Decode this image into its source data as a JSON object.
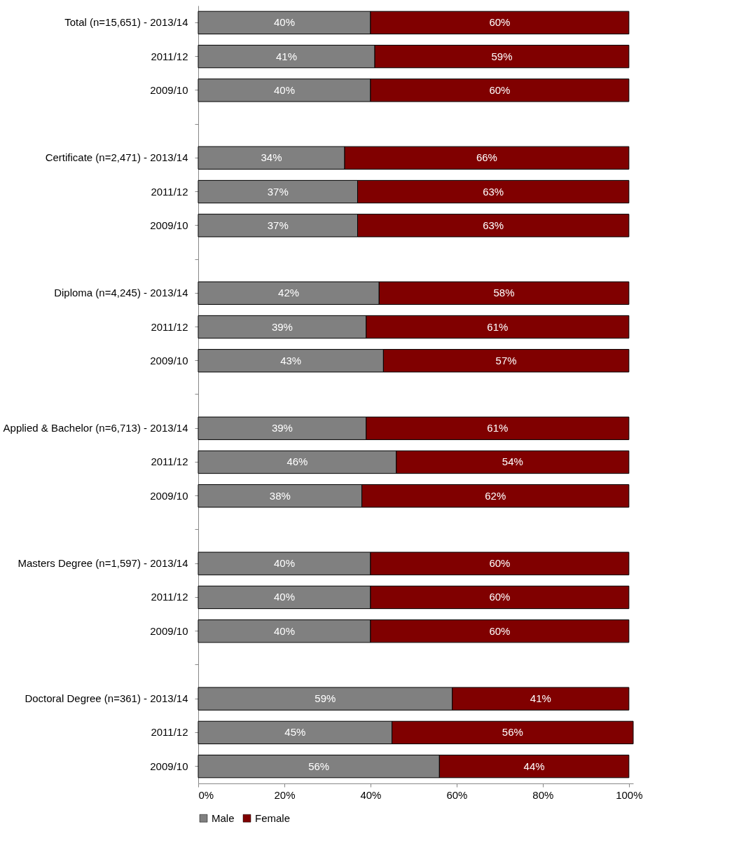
{
  "chart_data": {
    "type": "bar",
    "orientation": "horizontal",
    "stacked": true,
    "legend": "bottom",
    "grid": false,
    "categories": [
      "Total (n=15,651) - 2013/14",
      "2011/12",
      "2009/10",
      null,
      "Certificate (n=2,471) - 2013/14",
      "2011/12",
      "2009/10",
      null,
      "Diploma (n=4,245) - 2013/14",
      "2011/12",
      "2009/10",
      null,
      "Applied & Bachelor (n=6,713) - 2013/14",
      "2011/12",
      "2009/10",
      null,
      "Masters Degree (n=1,597) - 2013/14",
      "2011/12",
      "2009/10",
      null,
      "Doctoral Degree (n=361) - 2013/14",
      "2011/12",
      "2009/10"
    ],
    "series": [
      {
        "name": "Male",
        "color": "#808080",
        "values": [
          40,
          41,
          40,
          null,
          34,
          37,
          37,
          null,
          42,
          39,
          43,
          null,
          39,
          46,
          38,
          null,
          40,
          40,
          40,
          null,
          59,
          45,
          56
        ],
        "value_labels": [
          "40%",
          "41%",
          "40%",
          null,
          "34%",
          "37%",
          "37%",
          null,
          "42%",
          "39%",
          "43%",
          null,
          "39%",
          "46%",
          "38%",
          null,
          "40%",
          "40%",
          "40%",
          null,
          "59%",
          "45%",
          "56%"
        ]
      },
      {
        "name": "Female",
        "color": "#800000",
        "values": [
          60,
          59,
          60,
          null,
          66,
          63,
          63,
          null,
          58,
          61,
          57,
          null,
          61,
          54,
          62,
          null,
          60,
          60,
          60,
          null,
          41,
          56,
          44
        ],
        "value_labels": [
          "60%",
          "59%",
          "60%",
          null,
          "66%",
          "63%",
          "63%",
          null,
          "58%",
          "61%",
          "57%",
          null,
          "61%",
          "54%",
          "62%",
          null,
          "60%",
          "60%",
          "60%",
          null,
          "41%",
          "56%",
          "44%"
        ]
      }
    ],
    "xlim": [
      0,
      101
    ],
    "xticks": [
      {
        "value": 0,
        "label": "0%"
      },
      {
        "value": 20,
        "label": "20%"
      },
      {
        "value": 40,
        "label": "40%"
      },
      {
        "value": 60,
        "label": "60%"
      },
      {
        "value": 80,
        "label": "80%"
      },
      {
        "value": 100,
        "label": "100%"
      }
    ]
  }
}
